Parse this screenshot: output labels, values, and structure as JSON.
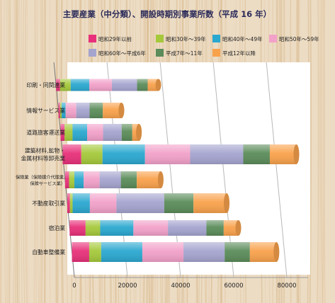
{
  "chart_data": {
    "type": "bar",
    "orientation": "horizontal",
    "stacked": true,
    "title": "主要産業（中分類）、開設時期別事業所数（平成 16 年）",
    "xlabel": "",
    "ylabel": "",
    "xlim": [
      0,
      90000
    ],
    "x_ticks": [
      0,
      20000,
      40000,
      60000,
      80000
    ],
    "grid": true,
    "legend_position": "top",
    "categories": [
      [
        "印刷・同関連業"
      ],
      [
        "情報サービス業"
      ],
      [
        "道路旅客運送業"
      ],
      [
        "建築材料,鉱物・",
        "金属材料等卸売業"
      ],
      [
        "保険業（保険媒介代理業,",
        "保険サービス業）"
      ],
      [
        "不動産取引業"
      ],
      [
        "宿泊業"
      ],
      [
        "自動車整備業"
      ]
    ],
    "series": [
      {
        "name": "昭和29年以前",
        "color": "#e8317a",
        "values": [
          1500,
          600,
          1500,
          7000,
          1500,
          1000,
          6000,
          6500
        ]
      },
      {
        "name": "昭和30年～39年",
        "color": "#a5c93b",
        "values": [
          4000,
          600,
          3000,
          8000,
          2000,
          1000,
          5500,
          4500
        ]
      },
      {
        "name": "昭和40年～49年",
        "color": "#2ba8d0",
        "values": [
          7000,
          1500,
          5500,
          16000,
          3500,
          6500,
          12500,
          15500
        ]
      },
      {
        "name": "昭和50年～59年",
        "color": "#f2a1c9",
        "values": [
          8500,
          4000,
          6000,
          17000,
          6000,
          10000,
          13000,
          15500
        ]
      },
      {
        "name": "昭和60年～平成6年",
        "color": "#a5a4cf",
        "values": [
          9500,
          5000,
          7000,
          20000,
          8000,
          18000,
          14500,
          15500
        ]
      },
      {
        "name": "平成7年～11年",
        "color": "#5b8c5a",
        "values": [
          4000,
          5000,
          4000,
          10000,
          6000,
          11000,
          6500,
          9500
        ]
      },
      {
        "name": "平成12年以降",
        "color": "#f9a24c",
        "values": [
          4000,
          7000,
          2500,
          10000,
          9000,
          12500,
          5500,
          10000
        ]
      }
    ]
  }
}
